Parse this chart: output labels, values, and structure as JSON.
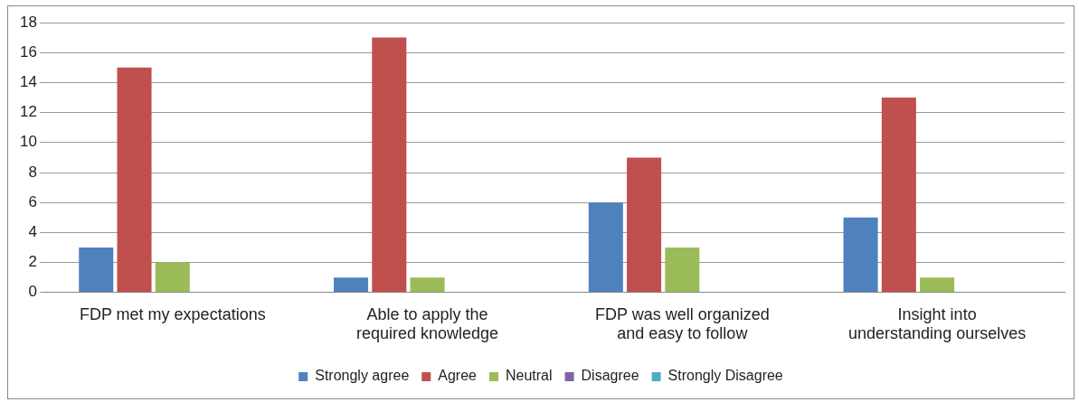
{
  "chart_data": {
    "type": "bar",
    "categories": [
      "FDP met my expectations",
      "Able to apply the required knowledge",
      "FDP was well organized and easy to follow",
      "Insight into understanding ourselves"
    ],
    "series": [
      {
        "name": "Strongly agree",
        "color": "#4f81bd",
        "values": [
          3,
          1,
          6,
          5
        ]
      },
      {
        "name": "Agree",
        "color": "#c0504d",
        "values": [
          15,
          17,
          9,
          13
        ]
      },
      {
        "name": "Neutral",
        "color": "#9bbb59",
        "values": [
          2,
          1,
          3,
          1
        ]
      },
      {
        "name": "Disagree",
        "color": "#8064a2",
        "values": [
          0,
          0,
          0,
          0
        ]
      },
      {
        "name": "Strongly Disagree",
        "color": "#4bacc6",
        "values": [
          0,
          0,
          0,
          0
        ]
      }
    ],
    "ylim": [
      0,
      18
    ],
    "yticks": [
      0,
      2,
      4,
      6,
      8,
      10,
      12,
      14,
      16,
      18
    ],
    "grid": "y",
    "legend": "bottom"
  }
}
